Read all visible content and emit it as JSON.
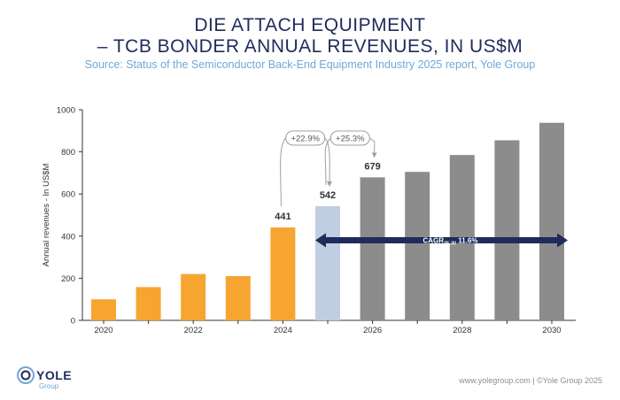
{
  "title_line1": "DIE ATTACH EQUIPMENT",
  "title_line2": "– TCB BONDER ANNUAL REVENUES, IN US$M",
  "source": "Source: Status of the Semiconductor Back-End Equipment Industry 2025 report, Yole Group",
  "footer": "www.yolegroup.com | ©Yole Group 2025",
  "logo": {
    "word": "YOLE",
    "sub": "Group"
  },
  "colors": {
    "title": "#1f2b5b",
    "source": "#6fa8d6",
    "historical": "#f6a530",
    "current": "#c1cde2",
    "forecast": "#8c8c8c",
    "cagr_arrow": "#1f2b5b"
  },
  "chart_data": {
    "type": "bar",
    "ylabel": "Annual revenues - In US$M",
    "ylim": [
      0,
      1000
    ],
    "yticks": [
      "0",
      "200",
      "400",
      "600",
      "800",
      "1000"
    ],
    "categories": [
      "2020",
      "2021",
      "2022",
      "2023",
      "2024",
      "2025",
      "2026",
      "2027",
      "2028",
      "2029",
      "2030"
    ],
    "xtick_labels": [
      "2020",
      "",
      "2022",
      "",
      "2024",
      "",
      "2026",
      "",
      "2028",
      "",
      "2030"
    ],
    "values": [
      100,
      158,
      220,
      210,
      441,
      542,
      679,
      705,
      785,
      855,
      938
    ],
    "bar_kind": [
      "historical",
      "historical",
      "historical",
      "historical",
      "historical",
      "current",
      "forecast",
      "forecast",
      "forecast",
      "forecast",
      "forecast"
    ],
    "data_labels": [
      "",
      "",
      "",
      "",
      "441",
      "542",
      "679",
      "",
      "",
      "",
      ""
    ],
    "growth_annotations": [
      {
        "from": "2024",
        "to": "2025",
        "label": "+22.9%"
      },
      {
        "from": "2025",
        "to": "2026",
        "label": "+25.3%"
      }
    ],
    "cagr": {
      "label_prefix": "CAGR",
      "label_sub": "25-30",
      "label_value": "11.6%",
      "from": "2025",
      "to": "2030",
      "y": 380
    }
  }
}
